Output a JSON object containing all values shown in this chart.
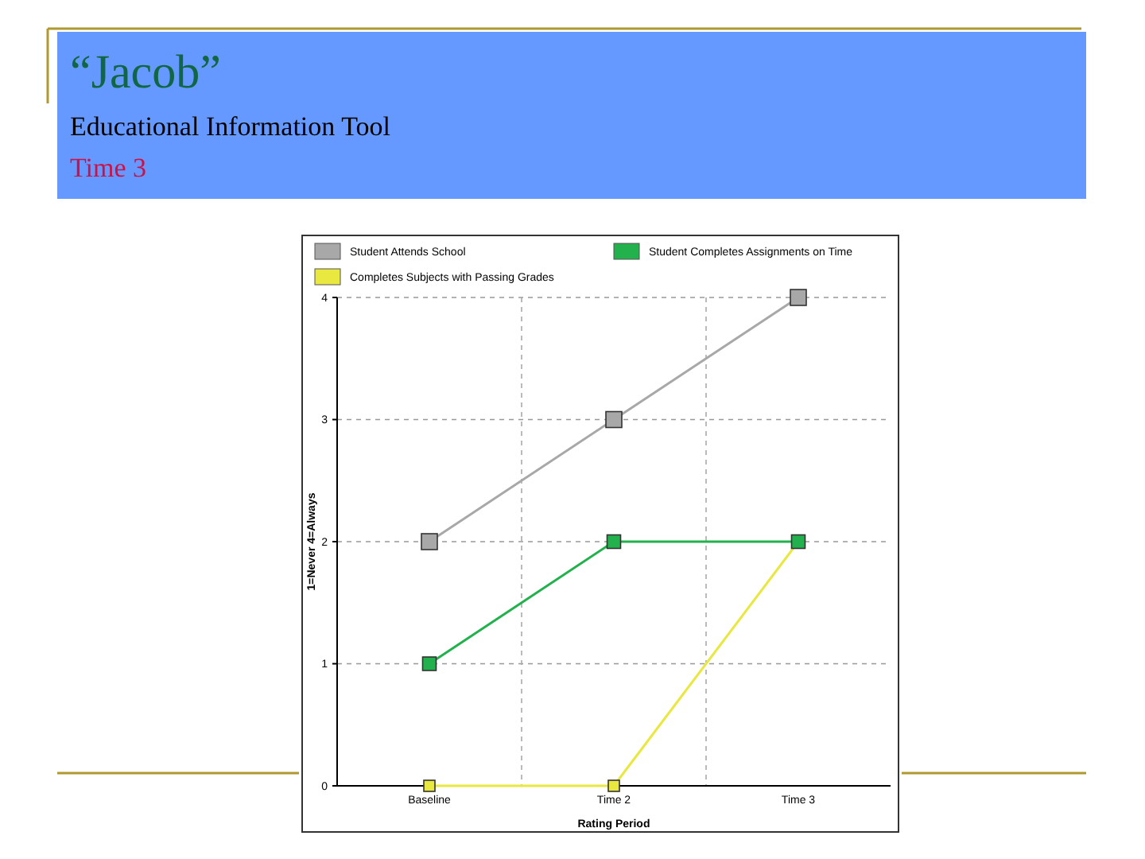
{
  "chart_data": {
    "type": "line",
    "title": "“Jacob”",
    "subtitle": "Educational Information Tool",
    "annotations": [
      "Time 3"
    ],
    "xlabel": "Rating Period",
    "ylabel": "1=Never 4=Always",
    "categories": [
      "Baseline",
      "Time 2",
      "Time 3"
    ],
    "series": [
      {
        "name": "Student Attends School",
        "color": "#a8a8a8",
        "values": [
          2,
          3,
          4
        ]
      },
      {
        "name": "Student Completes Assignments on Time",
        "color": "#22b14c",
        "values": [
          1,
          2,
          2
        ]
      },
      {
        "name": "Completes Subjects with Passing Grades",
        "color": "#e8e840",
        "values": [
          0,
          0,
          2
        ]
      }
    ],
    "ylim": [
      0,
      4
    ],
    "yticks": [
      0,
      1,
      2,
      3,
      4
    ],
    "grid": true,
    "legend": "top",
    "marker": "square",
    "line_style": "solid"
  }
}
